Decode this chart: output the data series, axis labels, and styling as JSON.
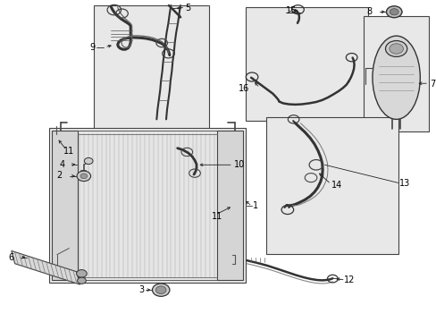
{
  "bg": "#ffffff",
  "box_fill": "#e8e8e8",
  "box_edge": "#444444",
  "fig_w": 4.89,
  "fig_h": 3.6,
  "dpi": 100,
  "boxes": {
    "9": [
      0.215,
      0.53,
      0.48,
      0.985
    ],
    "10": [
      0.395,
      0.39,
      0.53,
      0.545
    ],
    "15": [
      0.57,
      0.635,
      0.845,
      0.98
    ],
    "7": [
      0.84,
      0.595,
      0.985,
      0.95
    ],
    "1": [
      0.115,
      0.125,
      0.565,
      0.6
    ],
    "13": [
      0.615,
      0.215,
      0.915,
      0.635
    ]
  },
  "lc": "#222222",
  "label_fs": 7,
  "tick_fs": 7
}
